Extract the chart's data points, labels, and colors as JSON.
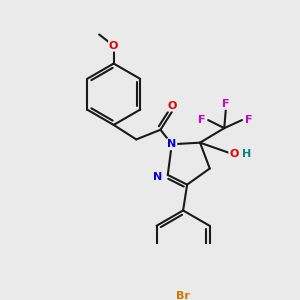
{
  "background_color": "#eaeaea",
  "bond_color": "#1a1a1a",
  "atom_colors": {
    "O": "#e00000",
    "N": "#0000dd",
    "F": "#cc00cc",
    "Br": "#cc7700",
    "H": "#008888",
    "C": "#1a1a1a"
  },
  "figsize": [
    3.0,
    3.0
  ],
  "dpi": 100
}
